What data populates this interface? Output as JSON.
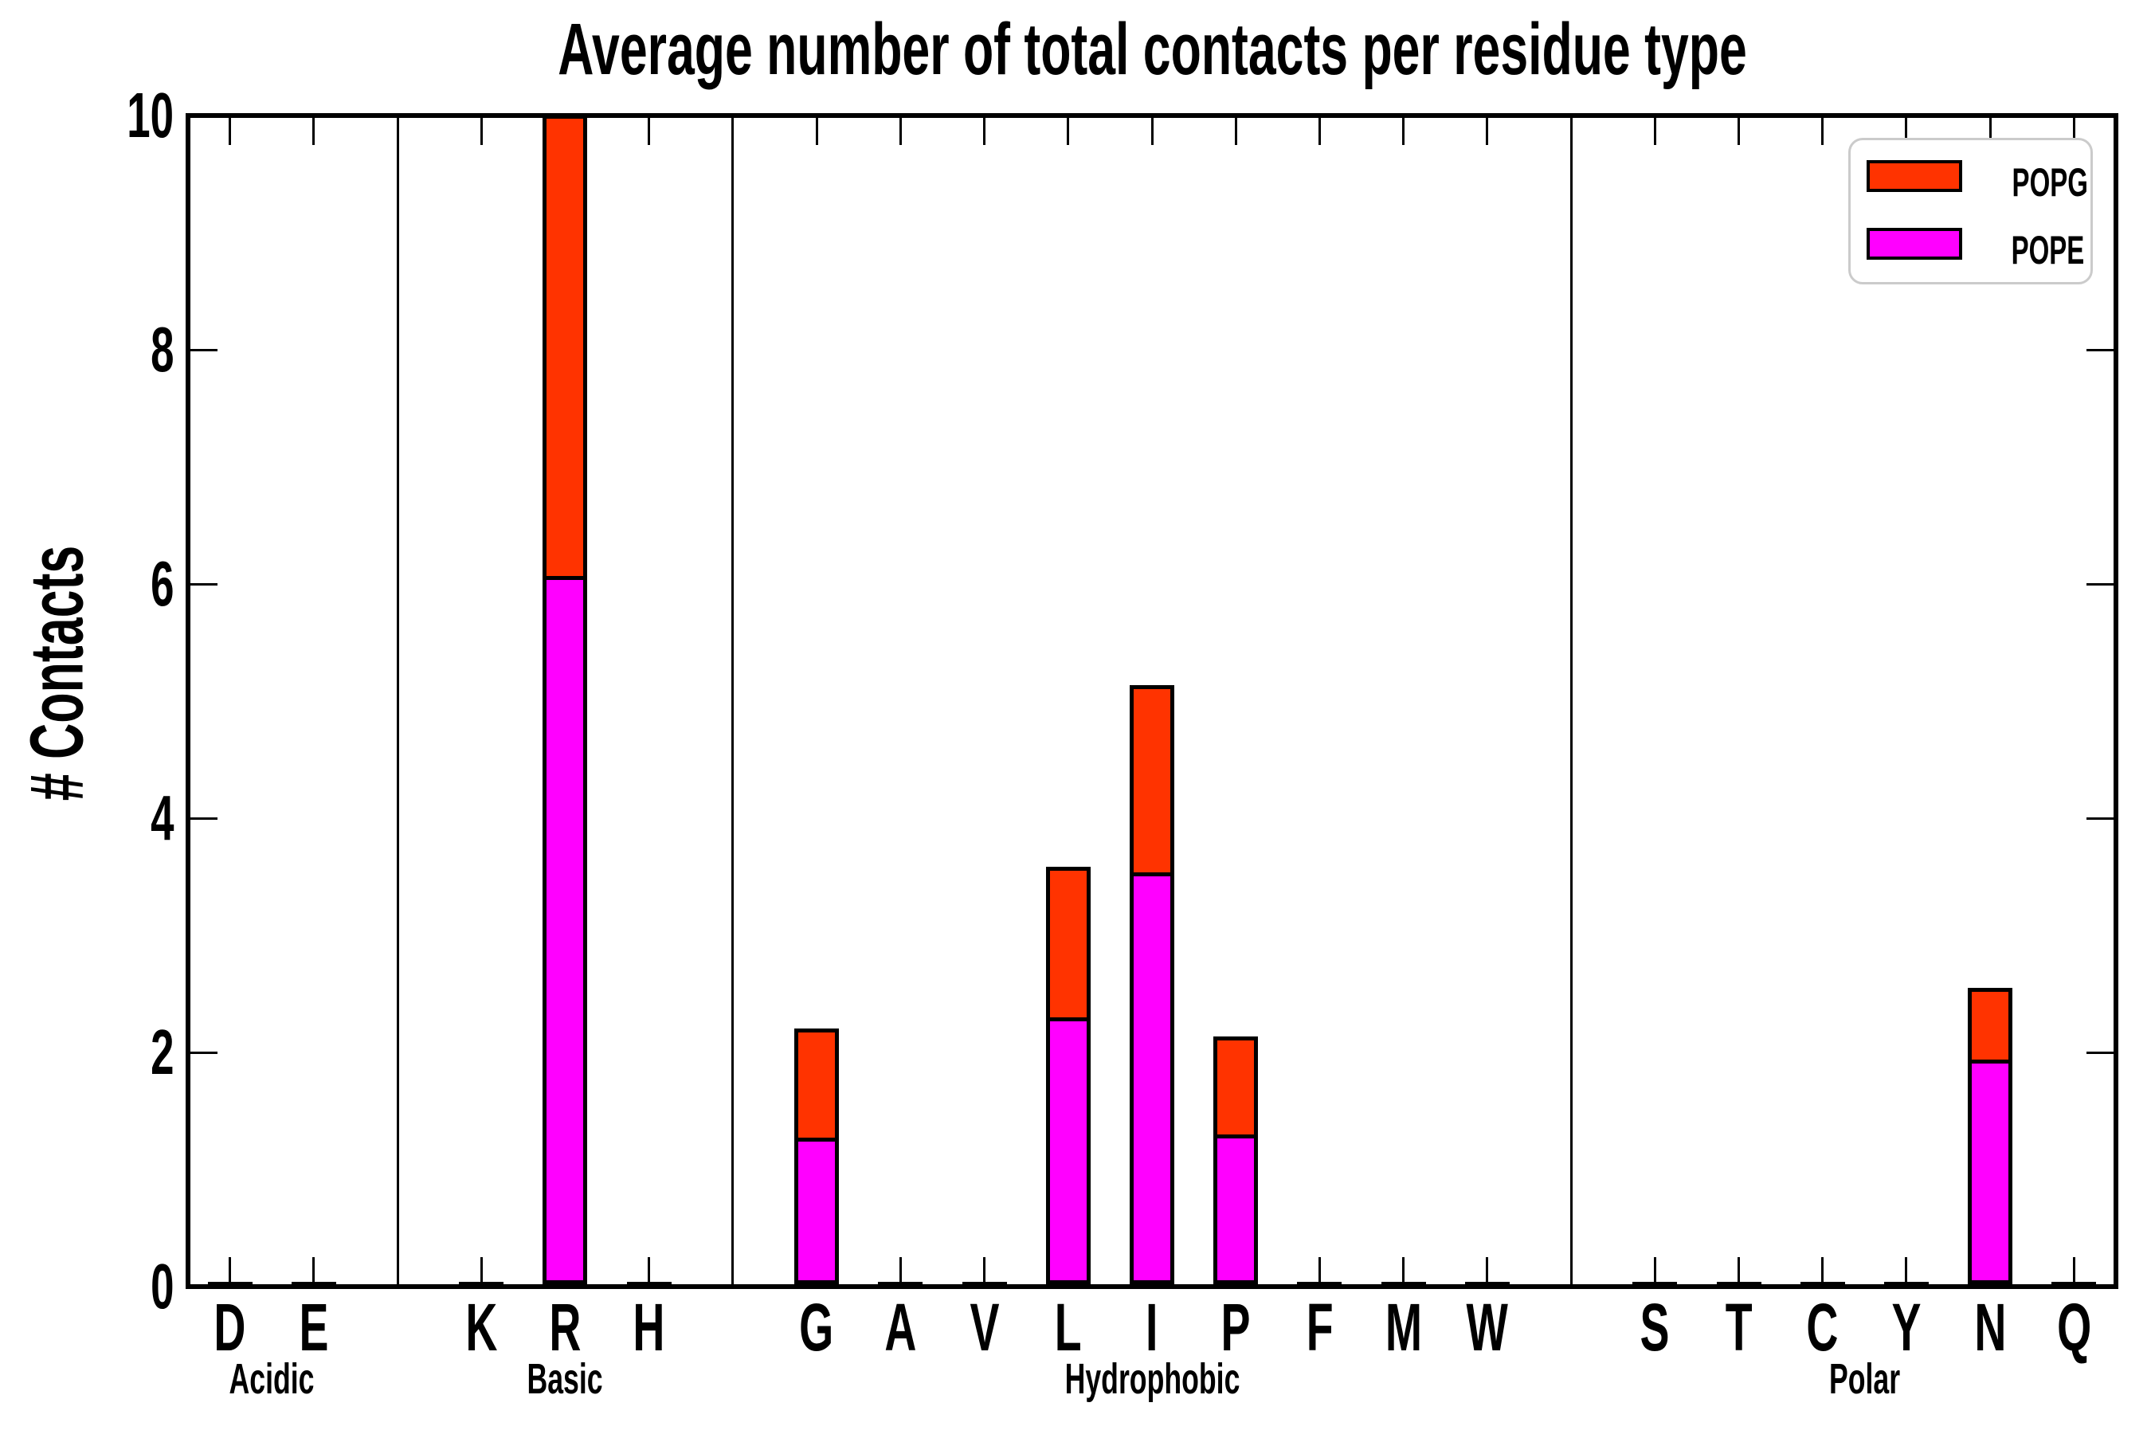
{
  "chart_data": {
    "type": "bar",
    "stacked": true,
    "title": "Average number of total contacts per residue type",
    "ylabel": "# Contacts",
    "xlabel": "",
    "ylim": [
      0,
      10
    ],
    "yticks": [
      0,
      2,
      4,
      6,
      8,
      10
    ],
    "grid": false,
    "legend_position": "upper-right",
    "legend": [
      {
        "label": "POPG",
        "color": "#ff3300"
      },
      {
        "label": "POPE",
        "color": "#ff00ff"
      }
    ],
    "groups": [
      {
        "label": "Acidic",
        "residues": [
          "D",
          "E"
        ]
      },
      {
        "label": "Basic",
        "residues": [
          "K",
          "R",
          "H"
        ]
      },
      {
        "label": "Hydrophobic",
        "residues": [
          "G",
          "A",
          "V",
          "L",
          "I",
          "P",
          "F",
          "M",
          "W"
        ]
      },
      {
        "label": "Polar",
        "residues": [
          "S",
          "T",
          "C",
          "Y",
          "N",
          "Q"
        ]
      }
    ],
    "categories": [
      "D",
      "E",
      "K",
      "R",
      "H",
      "G",
      "A",
      "V",
      "L",
      "I",
      "P",
      "F",
      "M",
      "W",
      "S",
      "T",
      "C",
      "Y",
      "N",
      "Q"
    ],
    "series": [
      {
        "name": "POPE",
        "color": "#ff00ff",
        "values": [
          0,
          0,
          0,
          6.05,
          0,
          1.25,
          0,
          0,
          2.28,
          3.52,
          1.28,
          0,
          0,
          0,
          0,
          0,
          0,
          0,
          1.92,
          0
        ]
      },
      {
        "name": "POPG",
        "color": "#ff3300",
        "values": [
          0,
          0,
          0,
          3.9,
          0,
          0.9,
          0,
          0,
          1.25,
          1.56,
          0.8,
          0,
          0,
          0,
          0,
          0,
          0,
          0,
          0.58,
          0
        ]
      }
    ],
    "totals": [
      0,
      0,
      0,
      9.95,
      0,
      2.15,
      0,
      0,
      3.53,
      5.08,
      2.08,
      0,
      0,
      0,
      0,
      0,
      0,
      0,
      2.5,
      0
    ]
  }
}
